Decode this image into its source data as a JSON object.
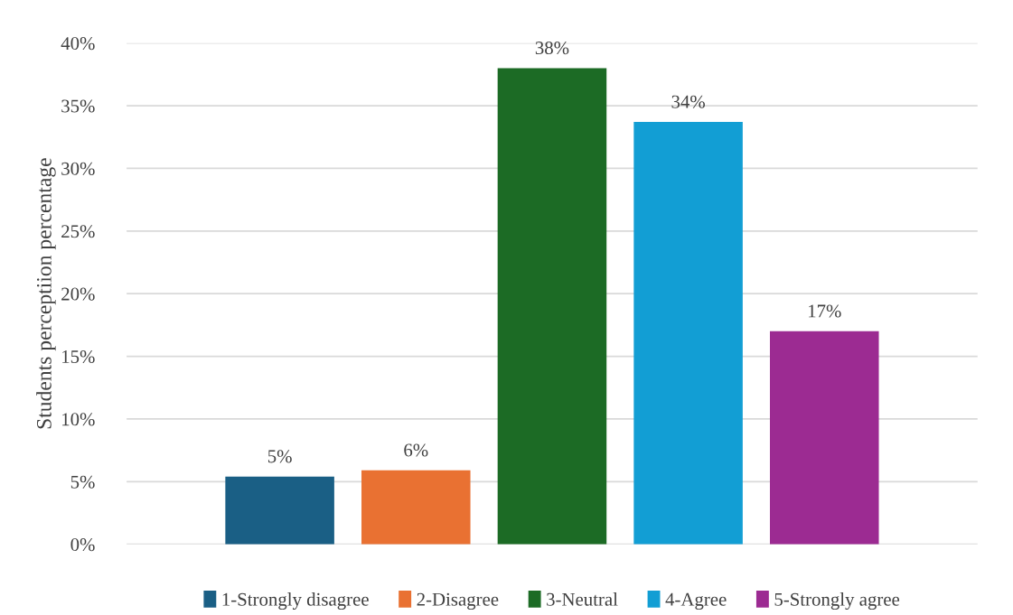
{
  "chart_data": {
    "type": "bar",
    "ylabel": "Students perceptiion percentage",
    "categories": [
      null
    ],
    "series": [
      {
        "name": "1-Strongly disagree",
        "color": "#1a5f85",
        "values": [
          5.4
        ],
        "value_labels": [
          "5%"
        ]
      },
      {
        "name": "2-Disagree",
        "color": "#e97132",
        "values": [
          5.9
        ],
        "value_labels": [
          "6%"
        ]
      },
      {
        "name": "3-Neutral",
        "color": "#1c6b25",
        "values": [
          38
        ],
        "value_labels": [
          "38%"
        ]
      },
      {
        "name": "4-Agree",
        "color": "#129ed4",
        "values": [
          33.7
        ],
        "value_labels": [
          "34%"
        ]
      },
      {
        "name": "5-Strongly agree",
        "color": "#9c2b92",
        "values": [
          17
        ],
        "value_labels": [
          "17%"
        ]
      }
    ],
    "ylim": [
      0,
      40
    ],
    "yticks": [
      {
        "value": 0,
        "label": "0%"
      },
      {
        "value": 5,
        "label": "5%"
      },
      {
        "value": 10,
        "label": "10%"
      },
      {
        "value": 15,
        "label": "15%"
      },
      {
        "value": 20,
        "label": "20%"
      },
      {
        "value": 25,
        "label": "25%"
      },
      {
        "value": 30,
        "label": "30%"
      },
      {
        "value": 35,
        "label": "35%"
      },
      {
        "value": 40,
        "label": "40%"
      }
    ],
    "grid": "y",
    "legend": "bottom"
  }
}
